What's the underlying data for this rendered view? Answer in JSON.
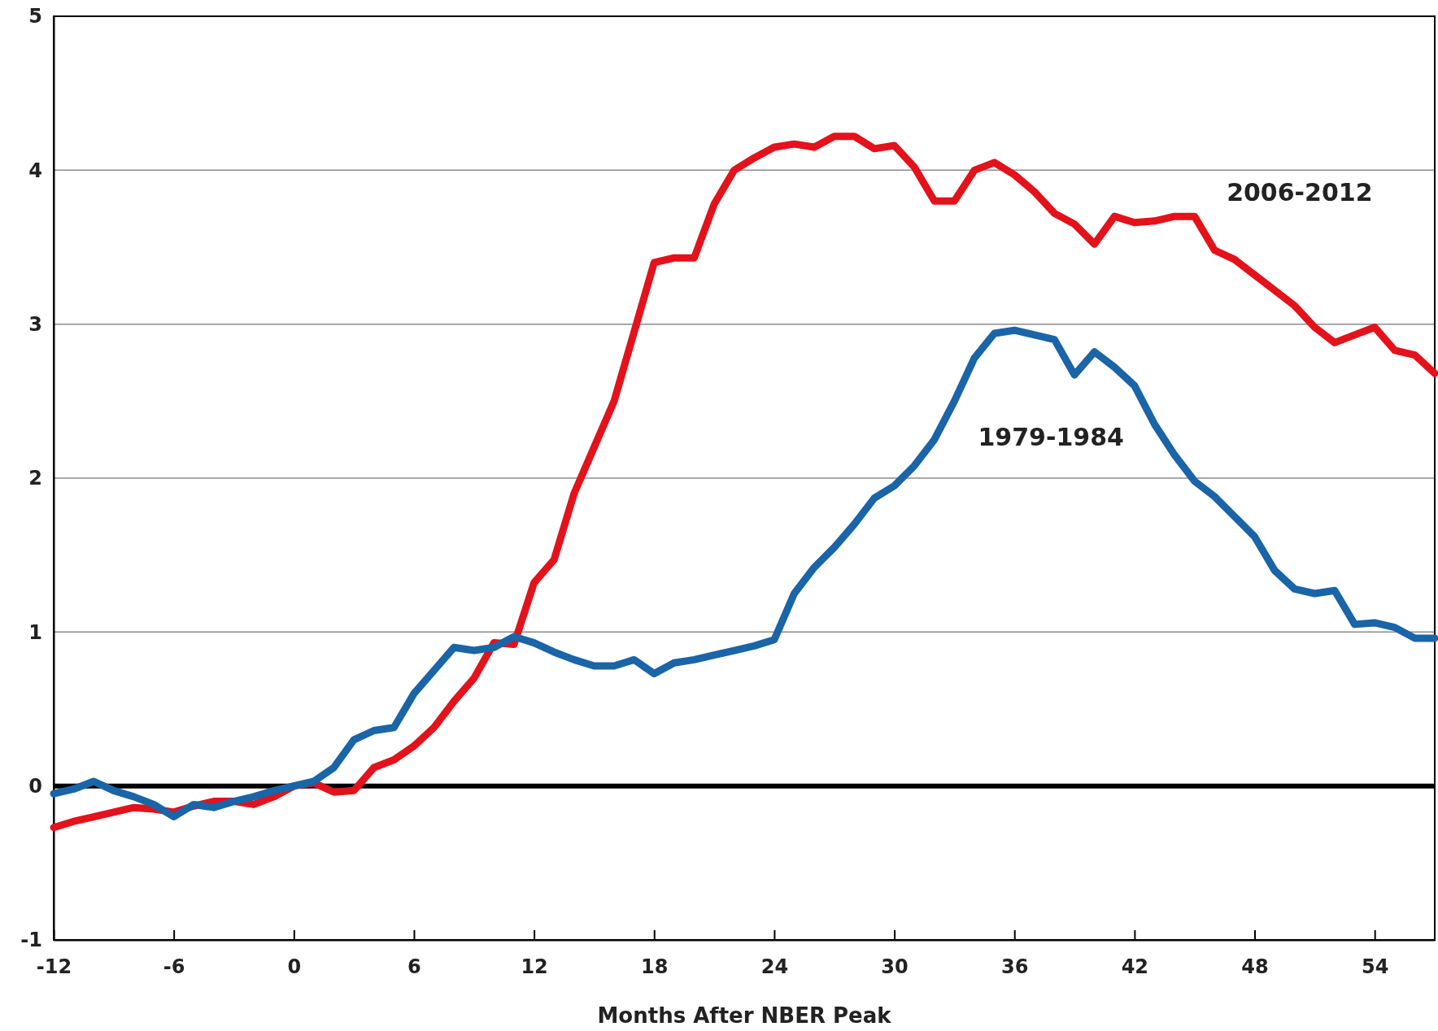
{
  "chart_data": {
    "type": "line",
    "xlabel": "Months After NBER Peak",
    "x": [
      -12,
      -11,
      -10,
      -9,
      -8,
      -7,
      -6,
      -5,
      -4,
      -3,
      -2,
      -1,
      0,
      1,
      2,
      3,
      4,
      5,
      6,
      7,
      8,
      9,
      10,
      11,
      12,
      13,
      14,
      15,
      16,
      17,
      18,
      19,
      20,
      21,
      22,
      23,
      24,
      25,
      26,
      27,
      28,
      29,
      30,
      31,
      32,
      33,
      34,
      35,
      36,
      37,
      38,
      39,
      40,
      41,
      42,
      43,
      44,
      45,
      46,
      47,
      48,
      49,
      50,
      51,
      52,
      53,
      54,
      55,
      56,
      57
    ],
    "series": [
      {
        "name": "2006-2012",
        "color": "#e3121b",
        "values": [
          -0.27,
          -0.23,
          -0.2,
          -0.17,
          -0.14,
          -0.15,
          -0.17,
          -0.13,
          -0.1,
          -0.1,
          -0.12,
          -0.07,
          0.0,
          0.02,
          -0.04,
          -0.03,
          0.12,
          0.17,
          0.26,
          0.38,
          0.55,
          0.7,
          0.93,
          0.92,
          1.32,
          1.47,
          1.9,
          2.2,
          2.5,
          2.95,
          3.4,
          3.43,
          3.43,
          3.78,
          4.0,
          4.08,
          4.15,
          4.17,
          4.15,
          4.22,
          4.22,
          4.14,
          4.16,
          4.02,
          3.8,
          3.8,
          4.0,
          4.05,
          3.97,
          3.86,
          3.72,
          3.65,
          3.52,
          3.7,
          3.66,
          3.67,
          3.7,
          3.7,
          3.48,
          3.42,
          3.32,
          3.22,
          3.12,
          2.98,
          2.88,
          2.93,
          2.98,
          2.83,
          2.8,
          2.68
        ]
      },
      {
        "name": "1979-1984",
        "color": "#1a64a8",
        "values": [
          -0.05,
          -0.02,
          0.03,
          -0.03,
          -0.07,
          -0.12,
          -0.2,
          -0.12,
          -0.14,
          -0.1,
          -0.07,
          -0.03,
          0.0,
          0.03,
          0.12,
          0.3,
          0.36,
          0.38,
          0.6,
          0.75,
          0.9,
          0.88,
          0.9,
          0.97,
          0.93,
          0.87,
          0.82,
          0.78,
          0.78,
          0.82,
          0.73,
          0.8,
          0.82,
          0.85,
          0.88,
          0.91,
          0.95,
          1.25,
          1.42,
          1.55,
          1.7,
          1.87,
          1.95,
          2.08,
          2.25,
          2.5,
          2.78,
          2.94,
          2.96,
          2.93,
          2.9,
          2.67,
          2.82,
          2.72,
          2.6,
          2.35,
          2.15,
          1.98,
          1.88,
          1.75,
          1.62,
          1.4,
          1.28,
          1.25,
          1.27,
          1.05,
          1.06,
          1.03,
          0.96,
          0.96
        ]
      }
    ],
    "xlim": [
      -12,
      57
    ],
    "xticks": [
      -12,
      -6,
      0,
      6,
      12,
      18,
      24,
      30,
      36,
      42,
      48,
      54
    ],
    "ylim": [
      -1,
      5
    ],
    "yticks": [
      -1,
      0,
      1,
      2,
      3,
      4,
      5
    ],
    "grid": "y",
    "legend": false,
    "marker": "none",
    "line_style": "solid",
    "ref_lines": [
      {
        "axis": "y",
        "value": 0,
        "color": "#000000"
      }
    ]
  }
}
